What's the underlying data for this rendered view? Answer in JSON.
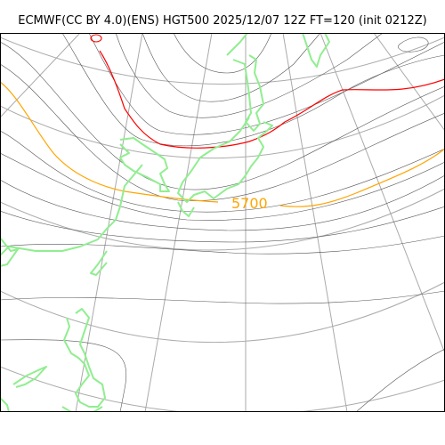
{
  "title": "ECMWF(CC BY 4.0)(ENS) HGT500 2025/12/07 12Z FT=120 (init 0212Z)",
  "contour_label": "5700",
  "colors": {
    "background": "#ffffff",
    "frame": "#000000",
    "graticule": "#aaaaaa",
    "height_contour": "#555555",
    "contour_5700": "#ffa500",
    "contour_5400": "#ff0000",
    "coastline": "#90ee90"
  },
  "layers": [
    "graticule",
    "height-contours",
    "contour-5400",
    "contour-5700",
    "coastline"
  ]
}
